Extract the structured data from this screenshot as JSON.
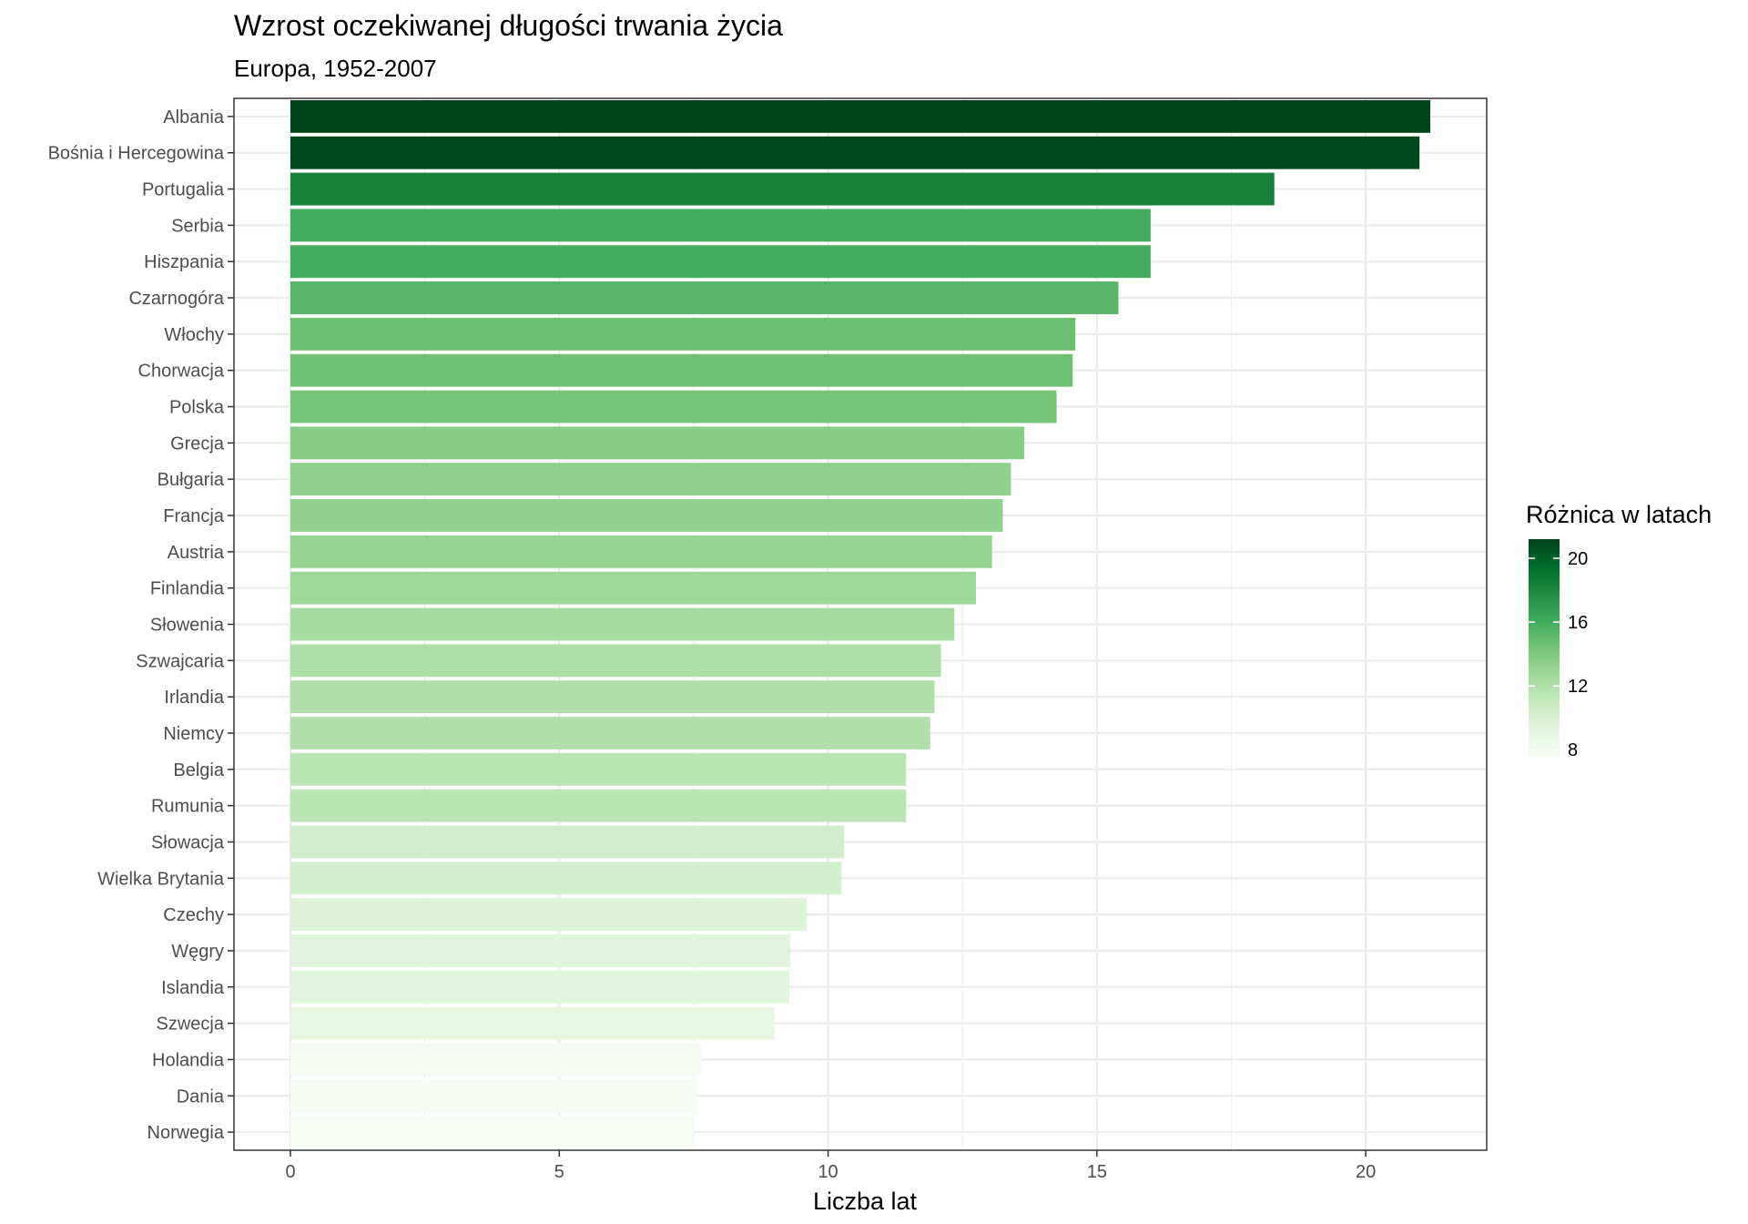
{
  "chart_data": {
    "type": "bar",
    "orientation": "horizontal",
    "title": "Wzrost oczekiwanej długości trwania życia",
    "subtitle": "Europa, 1952-2007",
    "xlabel": "Liczba lat",
    "ylabel": "",
    "xlim": [
      -1.05,
      22.25
    ],
    "x_ticks": [
      0,
      5,
      10,
      15,
      20
    ],
    "grid": true,
    "legend": {
      "title": "Różnica w latach",
      "position": "right",
      "ticks": [
        8,
        12,
        16,
        20
      ],
      "range": [
        7.5,
        21.2
      ],
      "color_low": "#f7fcf5",
      "color_high": "#00441b"
    },
    "categories": [
      "Albania",
      "Bośnia i Hercegowina",
      "Portugalia",
      "Serbia",
      "Hiszpania",
      "Czarnogóra",
      "Włochy",
      "Chorwacja",
      "Polska",
      "Grecja",
      "Bułgaria",
      "Francja",
      "Austria",
      "Finlandia",
      "Słowenia",
      "Szwajcaria",
      "Irlandia",
      "Niemcy",
      "Belgia",
      "Rumunia",
      "Słowacja",
      "Wielka Brytania",
      "Czechy",
      "Węgry",
      "Islandia",
      "Szwecja",
      "Holandia",
      "Dania",
      "Norwegia"
    ],
    "values": [
      21.2,
      21.0,
      18.3,
      16.0,
      16.0,
      15.4,
      14.6,
      14.55,
      14.25,
      13.65,
      13.4,
      13.25,
      13.05,
      12.75,
      12.35,
      12.1,
      11.98,
      11.9,
      11.45,
      11.45,
      10.3,
      10.25,
      9.6,
      9.3,
      9.28,
      9.0,
      7.65,
      7.55,
      7.5
    ]
  }
}
